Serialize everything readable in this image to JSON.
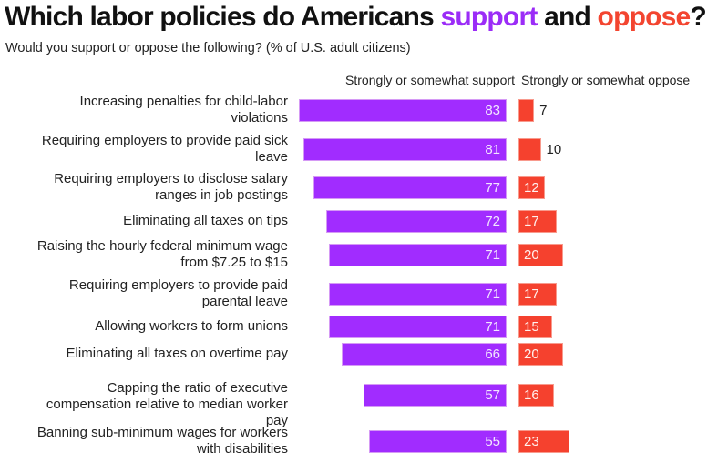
{
  "title": {
    "prefix": "Which labor policies do Americans ",
    "support_word": "support",
    "middle": " and ",
    "oppose_word": "oppose",
    "suffix": "?"
  },
  "subtitle": "Would you support or oppose the following? (% of U.S. adult citizens)",
  "colors": {
    "support": "#a12cff",
    "oppose": "#f5412e"
  },
  "chart_data": {
    "type": "bar",
    "orientation": "horizontal",
    "title": "Which labor policies do Americans support and oppose?",
    "subtitle": "Would you support or oppose the following? (% of U.S. adult citizens)",
    "xlabel": "",
    "ylabel": "",
    "xlim": [
      0,
      100
    ],
    "grid": false,
    "legend": "column headers above bars",
    "categories": [
      "Increasing penalties for child-labor violations",
      "Requiring employers to provide paid sick leave",
      "Requiring employers to disclose salary ranges in job postings",
      "Eliminating all taxes on tips",
      "Raising the hourly federal minimum wage from $7.25 to $15",
      "Requiring employers to provide paid parental leave",
      "Allowing workers to form unions",
      "Eliminating all taxes on overtime pay",
      "Capping the ratio of executive compensation relative to median worker pay",
      "Banning sub-minimum wages for workers with disabilities"
    ],
    "series": [
      {
        "name": "Strongly or somewhat support",
        "color": "#a12cff",
        "values": [
          83,
          81,
          77,
          72,
          71,
          71,
          71,
          66,
          57,
          55
        ]
      },
      {
        "name": "Strongly or somewhat oppose",
        "color": "#f5412e",
        "values": [
          7,
          10,
          12,
          17,
          20,
          17,
          15,
          20,
          16,
          23
        ]
      }
    ],
    "row_labels": [
      [
        "Increasing penalties for child-labor",
        "violations"
      ],
      [
        "Requiring employers to provide paid sick",
        "leave"
      ],
      [
        "Requiring employers to disclose salary",
        "ranges in job postings"
      ],
      [
        "Eliminating all taxes on tips"
      ],
      [
        "Raising the hourly federal minimum wage",
        "from $7.25 to $15"
      ],
      [
        "Requiring employers to provide paid",
        "parental leave"
      ],
      [
        "Allowing workers to form unions"
      ],
      [
        "Eliminating all taxes on overtime pay"
      ],
      [
        "Capping the ratio of executive",
        "compensation relative to median worker",
        "pay"
      ],
      [
        "Banning sub-minimum wages for workers",
        "with disabilities"
      ]
    ]
  }
}
